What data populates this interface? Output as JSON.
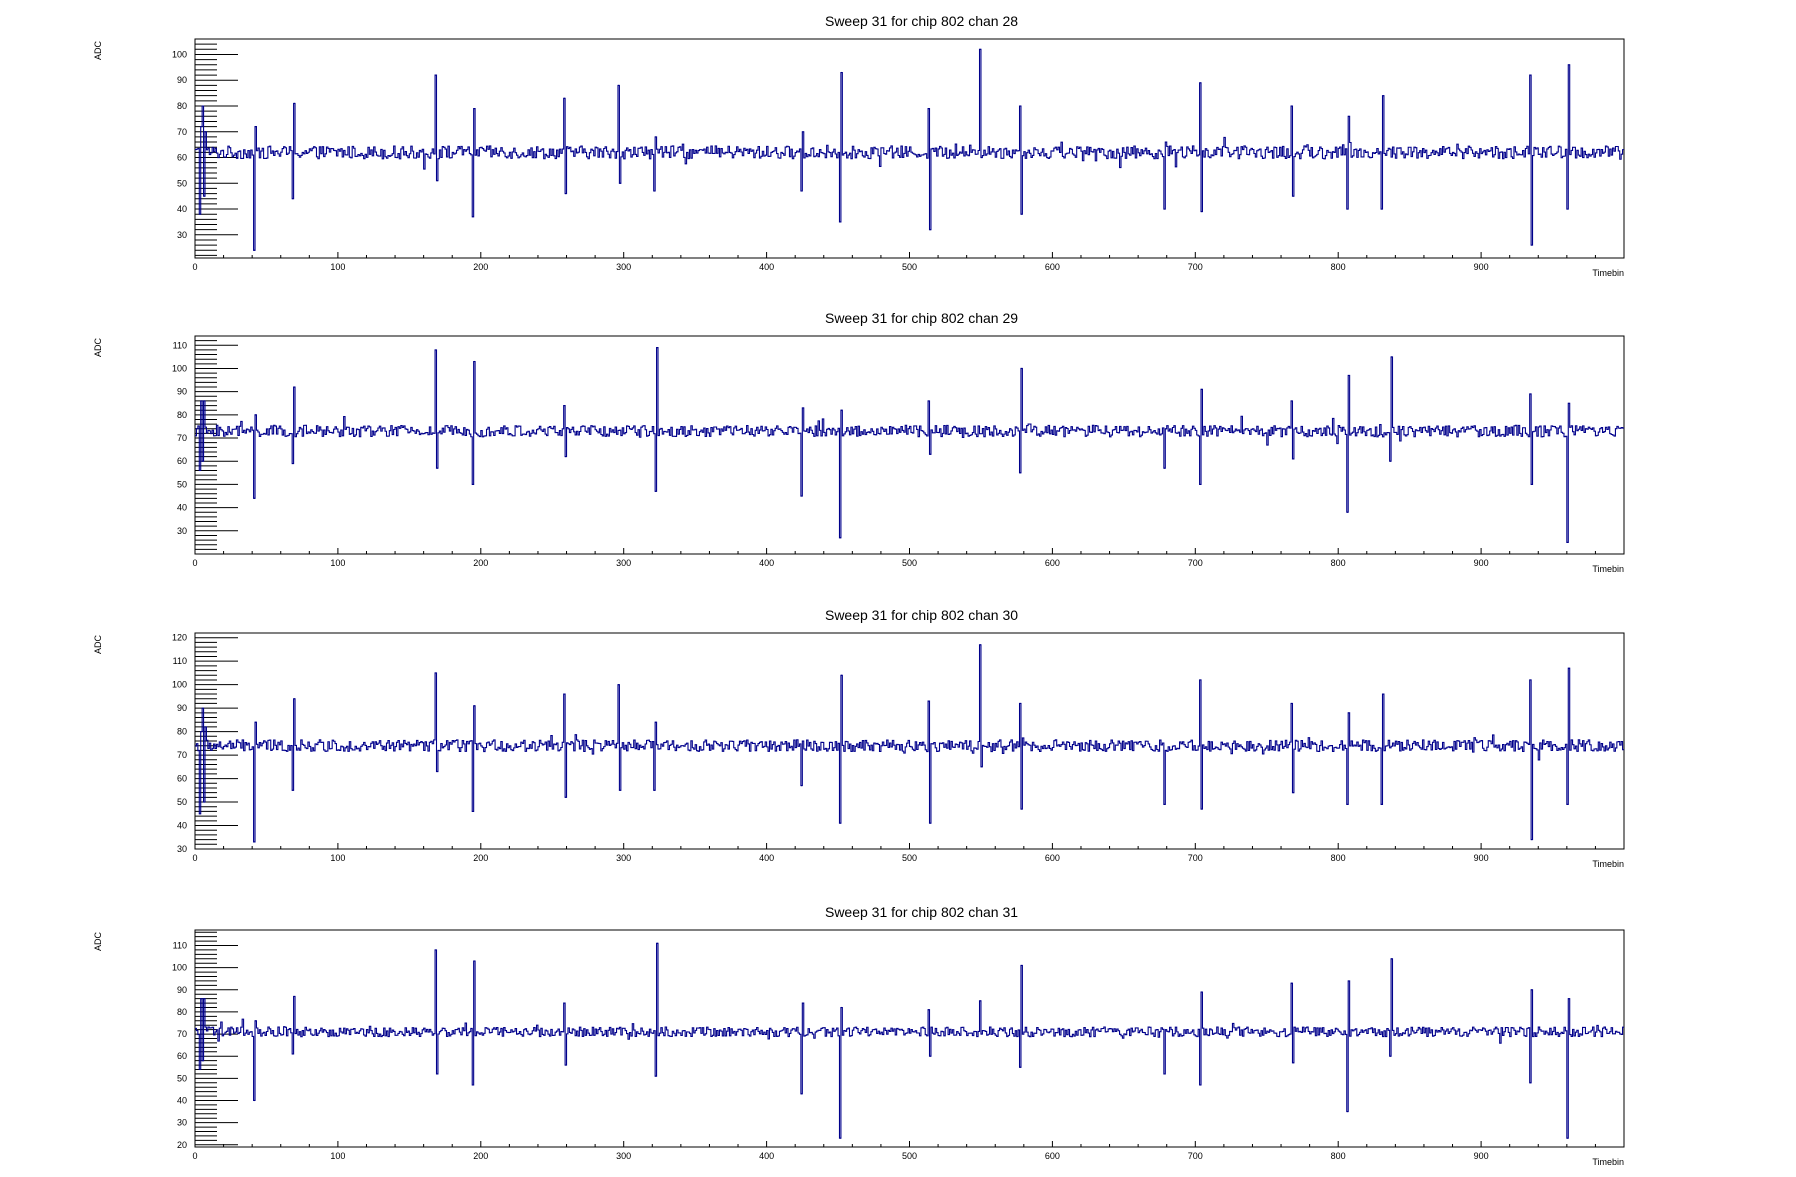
{
  "colors": {
    "trace": "#00008b",
    "frame": "#000000",
    "background": "#ffffff"
  },
  "chart_data": [
    {
      "type": "line",
      "title": "Sweep 31 for chip 802 chan 28",
      "xlabel": "Timebin",
      "ylabel": "ADC",
      "xlim": [
        0,
        1000
      ],
      "ylim": [
        21,
        106
      ],
      "xticks": [
        0,
        100,
        200,
        300,
        400,
        500,
        600,
        700,
        800,
        900
      ],
      "yticks": [
        30,
        40,
        50,
        60,
        70,
        80,
        90,
        100
      ],
      "baseline": 62,
      "noise": 2.5,
      "spikes": [
        {
          "x": 3,
          "values": [
            38,
            72,
            80,
            45,
            70
          ]
        },
        {
          "x": 41,
          "values": [
            24,
            72
          ]
        },
        {
          "x": 68,
          "values": [
            44,
            81
          ]
        },
        {
          "x": 168,
          "values": [
            92,
            51
          ]
        },
        {
          "x": 194,
          "values": [
            37,
            79
          ]
        },
        {
          "x": 258,
          "values": [
            83,
            46
          ]
        },
        {
          "x": 296,
          "values": [
            88,
            50
          ]
        },
        {
          "x": 321,
          "values": [
            47,
            68
          ]
        },
        {
          "x": 424,
          "values": [
            47,
            70
          ]
        },
        {
          "x": 451,
          "values": [
            35,
            93
          ]
        },
        {
          "x": 513,
          "values": [
            79,
            32
          ]
        },
        {
          "x": 549,
          "values": [
            102,
            60
          ]
        },
        {
          "x": 577,
          "values": [
            80,
            38
          ]
        },
        {
          "x": 678,
          "values": [
            40,
            66
          ]
        },
        {
          "x": 703,
          "values": [
            89,
            39
          ]
        },
        {
          "x": 767,
          "values": [
            80,
            45
          ]
        },
        {
          "x": 806,
          "values": [
            40,
            76
          ]
        },
        {
          "x": 830,
          "values": [
            40,
            84
          ]
        },
        {
          "x": 934,
          "values": [
            92,
            26
          ]
        },
        {
          "x": 960,
          "values": [
            40,
            96
          ]
        }
      ]
    },
    {
      "type": "line",
      "title": "Sweep 31 for chip 802 chan 29",
      "xlabel": "Timebin",
      "ylabel": "ADC",
      "xlim": [
        0,
        1000
      ],
      "ylim": [
        20,
        114
      ],
      "xticks": [
        0,
        100,
        200,
        300,
        400,
        500,
        600,
        700,
        800,
        900
      ],
      "yticks": [
        30,
        40,
        50,
        60,
        70,
        80,
        90,
        100,
        110
      ],
      "baseline": 73,
      "noise": 2.5,
      "spikes": [
        {
          "x": 3,
          "values": [
            56,
            86,
            60,
            86
          ]
        },
        {
          "x": 41,
          "values": [
            44,
            80
          ]
        },
        {
          "x": 68,
          "values": [
            59,
            92
          ]
        },
        {
          "x": 168,
          "values": [
            108,
            57
          ]
        },
        {
          "x": 194,
          "values": [
            50,
            103
          ]
        },
        {
          "x": 258,
          "values": [
            84,
            62
          ]
        },
        {
          "x": 322,
          "values": [
            47,
            109
          ]
        },
        {
          "x": 424,
          "values": [
            45,
            83
          ]
        },
        {
          "x": 451,
          "values": [
            27,
            82
          ]
        },
        {
          "x": 513,
          "values": [
            86,
            63
          ]
        },
        {
          "x": 577,
          "values": [
            55,
            100
          ]
        },
        {
          "x": 678,
          "values": [
            57,
            74
          ]
        },
        {
          "x": 703,
          "values": [
            50,
            91
          ]
        },
        {
          "x": 767,
          "values": [
            86,
            61
          ]
        },
        {
          "x": 806,
          "values": [
            38,
            97
          ]
        },
        {
          "x": 836,
          "values": [
            60,
            105
          ]
        },
        {
          "x": 934,
          "values": [
            89,
            50
          ]
        },
        {
          "x": 960,
          "values": [
            25,
            85
          ]
        }
      ]
    },
    {
      "type": "line",
      "title": "Sweep 31 for chip 802 chan 30",
      "xlabel": "Timebin",
      "ylabel": "ADC",
      "xlim": [
        0,
        1000
      ],
      "ylim": [
        30,
        122
      ],
      "xticks": [
        0,
        100,
        200,
        300,
        400,
        500,
        600,
        700,
        800,
        900
      ],
      "yticks": [
        30,
        40,
        50,
        60,
        70,
        80,
        90,
        100,
        110,
        120
      ],
      "baseline": 74,
      "noise": 2.5,
      "spikes": [
        {
          "x": 3,
          "values": [
            45,
            80,
            90,
            50,
            82
          ]
        },
        {
          "x": 41,
          "values": [
            33,
            84
          ]
        },
        {
          "x": 68,
          "values": [
            55,
            94
          ]
        },
        {
          "x": 168,
          "values": [
            105,
            63
          ]
        },
        {
          "x": 194,
          "values": [
            46,
            91
          ]
        },
        {
          "x": 258,
          "values": [
            96,
            52
          ]
        },
        {
          "x": 296,
          "values": [
            100,
            55
          ]
        },
        {
          "x": 321,
          "values": [
            55,
            84
          ]
        },
        {
          "x": 424,
          "values": [
            57,
            76
          ]
        },
        {
          "x": 451,
          "values": [
            41,
            104
          ]
        },
        {
          "x": 513,
          "values": [
            93,
            41
          ]
        },
        {
          "x": 549,
          "values": [
            117,
            65
          ]
        },
        {
          "x": 577,
          "values": [
            92,
            47
          ]
        },
        {
          "x": 678,
          "values": [
            49,
            72
          ]
        },
        {
          "x": 703,
          "values": [
            102,
            47
          ]
        },
        {
          "x": 767,
          "values": [
            92,
            54
          ]
        },
        {
          "x": 806,
          "values": [
            49,
            88
          ]
        },
        {
          "x": 830,
          "values": [
            49,
            96
          ]
        },
        {
          "x": 934,
          "values": [
            102,
            34
          ]
        },
        {
          "x": 960,
          "values": [
            49,
            107
          ]
        }
      ]
    },
    {
      "type": "line",
      "title": "Sweep 31 for chip 802 chan 31",
      "xlabel": "Timebin",
      "ylabel": "ADC",
      "xlim": [
        0,
        1000
      ],
      "ylim": [
        19,
        117
      ],
      "xticks": [
        0,
        100,
        200,
        300,
        400,
        500,
        600,
        700,
        800,
        900
      ],
      "yticks": [
        20,
        30,
        40,
        50,
        60,
        70,
        80,
        90,
        100,
        110
      ],
      "baseline": 71,
      "noise": 2.2,
      "spikes": [
        {
          "x": 3,
          "values": [
            54,
            86,
            58,
            86
          ]
        },
        {
          "x": 41,
          "values": [
            40,
            76
          ]
        },
        {
          "x": 68,
          "values": [
            61,
            87
          ]
        },
        {
          "x": 168,
          "values": [
            108,
            52
          ]
        },
        {
          "x": 194,
          "values": [
            47,
            103
          ]
        },
        {
          "x": 258,
          "values": [
            84,
            56
          ]
        },
        {
          "x": 322,
          "values": [
            51,
            111
          ]
        },
        {
          "x": 424,
          "values": [
            43,
            84
          ]
        },
        {
          "x": 451,
          "values": [
            23,
            82
          ]
        },
        {
          "x": 513,
          "values": [
            81,
            60
          ]
        },
        {
          "x": 549,
          "values": [
            85,
            70
          ]
        },
        {
          "x": 577,
          "values": [
            55,
            101
          ]
        },
        {
          "x": 678,
          "values": [
            52,
            72
          ]
        },
        {
          "x": 703,
          "values": [
            47,
            89
          ]
        },
        {
          "x": 767,
          "values": [
            93,
            57
          ]
        },
        {
          "x": 806,
          "values": [
            35,
            94
          ]
        },
        {
          "x": 836,
          "values": [
            60,
            104
          ]
        },
        {
          "x": 934,
          "values": [
            48,
            90
          ]
        },
        {
          "x": 960,
          "values": [
            23,
            86
          ]
        }
      ]
    }
  ]
}
